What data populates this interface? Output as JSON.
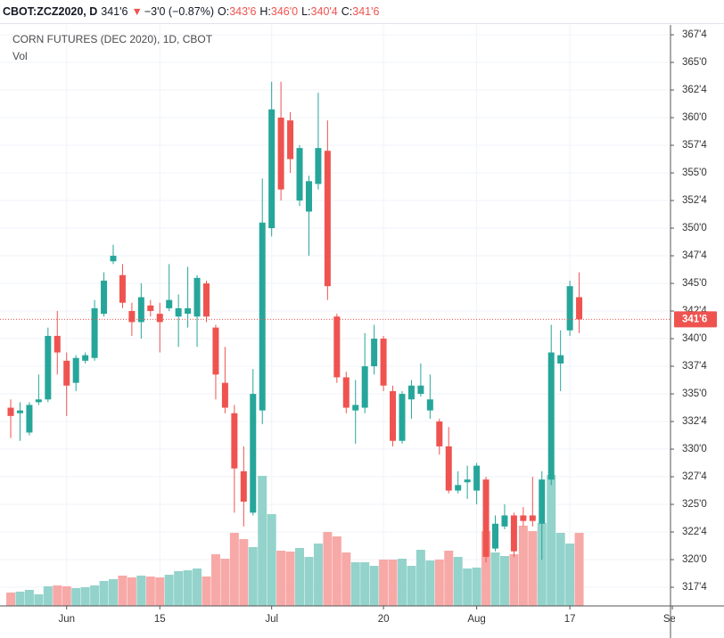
{
  "header": {
    "symbol": "CBOT:ZCZ2020, D",
    "price": "341'6",
    "change": "−3'0 (−0.87%)",
    "ohlc": [
      {
        "label": "O:",
        "value": "343'6"
      },
      {
        "label": "H:",
        "value": "346'0"
      },
      {
        "label": "L:",
        "value": "340'4"
      },
      {
        "label": "C:",
        "value": "341'6"
      }
    ]
  },
  "chart_data": {
    "type": "candlestick",
    "title": "CORN FUTURES (DEC 2020), 1D, CBOT",
    "volume_label": "Vol",
    "up_color": "#26a69a",
    "down_color": "#ef5350",
    "up_volume_color": "#93d3cb",
    "down_volume_color": "#f7a9a7",
    "grid": true,
    "xlim": [
      -1.15,
      70.8
    ],
    "xticks": [
      {
        "value": 6,
        "label": "Jun"
      },
      {
        "value": 16,
        "label": "15"
      },
      {
        "value": 28,
        "label": "Jul"
      },
      {
        "value": 40,
        "label": "20"
      },
      {
        "value": 50,
        "label": "Aug"
      },
      {
        "value": 60,
        "label": "17"
      },
      {
        "value": 71,
        "label": "Sep"
      }
    ],
    "ylim": [
      315.81,
      368.39
    ],
    "yticks": [
      {
        "value": 317.5,
        "label": "317'4"
      },
      {
        "value": 320,
        "label": "320'0"
      },
      {
        "value": 322.5,
        "label": "322'4"
      },
      {
        "value": 325,
        "label": "325'0"
      },
      {
        "value": 327.5,
        "label": "327'4"
      },
      {
        "value": 330,
        "label": "330'0"
      },
      {
        "value": 332.5,
        "label": "332'4"
      },
      {
        "value": 335,
        "label": "335'0"
      },
      {
        "value": 337.5,
        "label": "337'4"
      },
      {
        "value": 340,
        "label": "340'0"
      },
      {
        "value": 342.5,
        "label": "342'4"
      },
      {
        "value": 345,
        "label": "345'0"
      },
      {
        "value": 347.5,
        "label": "347'4"
      },
      {
        "value": 350,
        "label": "350'0"
      },
      {
        "value": 352.5,
        "label": "352'4"
      },
      {
        "value": 355,
        "label": "355'0"
      },
      {
        "value": 357.5,
        "label": "357'4"
      },
      {
        "value": 360,
        "label": "360'0"
      },
      {
        "value": 362.5,
        "label": "362'4"
      },
      {
        "value": 365,
        "label": "365'0"
      },
      {
        "value": 367.5,
        "label": "367'4"
      }
    ],
    "last_price": {
      "value": 341.75,
      "label": "341'6"
    },
    "open": [
      333.75,
      333.25,
      331.5,
      334.25,
      334.5,
      340.25,
      338,
      336,
      338,
      338.25,
      342.25,
      347,
      345.75,
      342.5,
      341.5,
      343,
      342.25,
      342.75,
      342,
      342.25,
      342,
      345,
      341,
      336,
      333.25,
      328,
      324.25,
      333.5,
      350,
      360,
      359.75,
      352.5,
      351.5,
      354,
      357,
      342,
      336.5,
      333.5,
      333.75,
      337.5,
      340,
      335.25,
      330.75,
      334.5,
      335,
      333.5,
      332.5,
      330.25,
      326.25,
      327,
      326.25,
      327.25,
      321,
      323,
      324,
      324,
      324,
      323.25,
      327.25,
      337.75,
      340.75,
      343.75
    ],
    "high": [
      334.5,
      334.25,
      334.25,
      336.75,
      341,
      342.5,
      338.75,
      338.5,
      338.75,
      343.5,
      346,
      348.5,
      346.75,
      343.25,
      345,
      343.5,
      343.25,
      346.75,
      344,
      346.5,
      345.75,
      345.25,
      341.25,
      339.25,
      334,
      330.25,
      337.25,
      354.5,
      363.25,
      363.25,
      360.5,
      357.5,
      354.75,
      362.25,
      359.75,
      342.25,
      337,
      336.25,
      340.5,
      341.25,
      340.25,
      335.75,
      335.25,
      336.25,
      337.75,
      336.75,
      332.75,
      332,
      328,
      328.5,
      328.75,
      327.5,
      324,
      325,
      324.25,
      324.75,
      327.5,
      328,
      341.25,
      340.75,
      345.25,
      346
    ],
    "low": [
      331,
      330.75,
      331.25,
      334,
      334.25,
      336.75,
      333,
      335.25,
      337.75,
      338,
      342,
      346.75,
      342.75,
      340.25,
      340,
      342,
      338.75,
      342.5,
      339.25,
      341,
      339.25,
      341.5,
      334.5,
      333.25,
      324.25,
      323,
      324,
      332.25,
      349.25,
      352.5,
      355,
      352,
      347.5,
      353.5,
      343.5,
      336,
      333.25,
      330.5,
      333.25,
      336.75,
      335.25,
      330.25,
      330.5,
      332.75,
      334.75,
      332.75,
      329.5,
      326,
      326,
      325.5,
      325,
      319.75,
      320.75,
      322.75,
      320.25,
      323,
      323,
      320,
      326.75,
      335.25,
      340.25,
      340.5
    ],
    "close": [
      333,
      333.5,
      334,
      334.5,
      340.25,
      338.75,
      335.75,
      338.25,
      338.5,
      342.75,
      345.25,
      347.5,
      343.25,
      341.5,
      343.75,
      342.5,
      341.5,
      343.5,
      342.75,
      342.75,
      345.5,
      342,
      336.75,
      333.75,
      328.25,
      325.25,
      335,
      350.5,
      360.75,
      353.5,
      356.25,
      357.25,
      354.25,
      357.25,
      344.75,
      336.5,
      333.75,
      334,
      337.5,
      340,
      335.75,
      330.75,
      335,
      335.75,
      335.75,
      334.5,
      330.25,
      326.25,
      326.75,
      327.25,
      328.5,
      320.25,
      323.25,
      324,
      320.75,
      323.5,
      323.5,
      327.25,
      338.75,
      338.5,
      344.75,
      341.75
    ],
    "volume": {
      "ylim": [
        0,
        160
      ],
      "values": [
        15,
        16,
        18,
        13,
        22,
        23,
        22,
        20,
        21,
        23,
        28,
        30,
        34,
        32,
        34,
        33,
        32,
        35,
        39,
        40,
        42,
        33,
        58,
        53,
        82,
        75,
        66,
        146,
        103,
        62,
        61,
        65,
        55,
        70,
        83,
        78,
        60,
        49,
        49,
        45,
        52,
        52,
        53,
        45,
        63,
        51,
        52,
        62,
        55,
        42,
        43,
        84,
        60,
        56,
        58,
        90,
        84,
        93,
        147,
        82,
        70,
        82
      ]
    }
  }
}
